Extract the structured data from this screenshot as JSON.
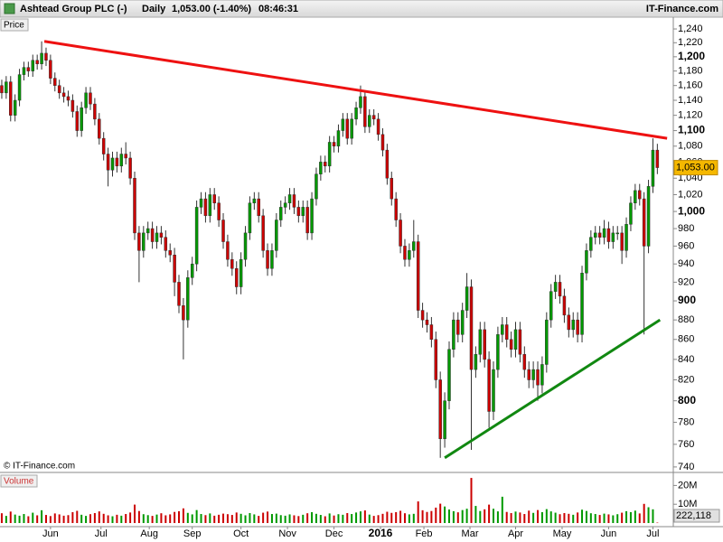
{
  "chart_data": {
    "type": "candlestick",
    "title": "Ashtead Group PLC (-)",
    "interval": "Daily",
    "quote": "1,053.00 (-1.40%)",
    "time": "08:46:31",
    "source": "IT-Finance.com",
    "copyright": "© IT-Finance.com",
    "y_label": "Price",
    "log_scale": true,
    "grid": false,
    "up_color": "#009900",
    "down_color": "#cc0000",
    "ylim": [
      736,
      1256
    ],
    "yticks": [
      740,
      760,
      780,
      800,
      820,
      840,
      860,
      880,
      900,
      920,
      940,
      960,
      980,
      {
        "value": 1000,
        "label": "1,000"
      },
      {
        "value": 1020,
        "label": "1,020"
      },
      {
        "value": 1040,
        "label": "1,040"
      },
      {
        "value": 1060,
        "label": "1,060"
      },
      {
        "value": 1080,
        "label": "1,080"
      },
      {
        "value": 1100,
        "label": "1,100"
      },
      {
        "value": 1120,
        "label": "1,120"
      },
      {
        "value": 1140,
        "label": "1,140"
      },
      {
        "value": 1160,
        "label": "1,160"
      },
      {
        "value": 1180,
        "label": "1,180"
      },
      {
        "value": 1200,
        "label": "1,200"
      },
      {
        "value": 1220,
        "label": "1,220"
      },
      {
        "value": 1240,
        "label": "1,240"
      }
    ],
    "xlim": [
      -0.4,
      151.6
    ],
    "xticks": [
      {
        "value": 11,
        "label": "Jun"
      },
      {
        "value": 22.4,
        "label": "Jul"
      },
      {
        "value": 33.3,
        "label": "Aug"
      },
      {
        "value": 43,
        "label": "Sep"
      },
      {
        "value": 54,
        "label": "Oct"
      },
      {
        "value": 64.5,
        "label": "Nov"
      },
      {
        "value": 75,
        "label": "Dec"
      },
      {
        "value": 85.5,
        "label": "2016"
      },
      {
        "value": 95.3,
        "label": "Feb"
      },
      {
        "value": 105.7,
        "label": "Mar"
      },
      {
        "value": 116,
        "label": "Apr"
      },
      {
        "value": 126.5,
        "label": "May"
      },
      {
        "value": 137,
        "label": "Jun"
      },
      {
        "value": 147,
        "label": "Jul"
      }
    ],
    "open": [
      1160,
      1150,
      1165,
      1120,
      1140,
      1175,
      1185,
      1180,
      1195,
      1190,
      1205,
      1195,
      1170,
      1160,
      1150,
      1145,
      1140,
      1125,
      1100,
      1130,
      1150,
      1135,
      1115,
      1090,
      1070,
      1050,
      1065,
      1055,
      1070,
      1065,
      1040,
      975,
      955,
      975,
      980,
      965,
      975,
      970,
      955,
      950,
      920,
      895,
      880,
      925,
      940,
      1005,
      1015,
      995,
      1020,
      1010,
      990,
      965,
      945,
      935,
      915,
      945,
      975,
      1010,
      1015,
      995,
      955,
      935,
      955,
      990,
      1005,
      1010,
      1020,
      1005,
      995,
      1005,
      975,
      1015,
      1045,
      1060,
      1055,
      1085,
      1080,
      1100,
      1115,
      1090,
      1115,
      1130,
      1145,
      1105,
      1120,
      1115,
      1095,
      1075,
      1040,
      1015,
      990,
      960,
      945,
      955,
      965,
      890,
      880,
      875,
      860,
      820,
      765,
      800,
      850,
      880,
      865,
      890,
      915,
      830,
      845,
      870,
      840,
      790,
      830,
      865,
      875,
      860,
      850,
      870,
      845,
      830,
      820,
      830,
      815,
      835,
      880,
      910,
      920,
      905,
      885,
      870,
      880,
      865,
      930,
      955,
      970,
      975,
      970,
      980,
      965,
      975,
      975,
      955,
      985,
      1010,
      1025,
      1015,
      960,
      1030,
      1075
    ],
    "high": [
      1168,
      1173,
      1173,
      1148,
      1183,
      1193,
      1193,
      1203,
      1203,
      1222,
      1213,
      1203,
      1178,
      1168,
      1158,
      1153,
      1148,
      1133,
      1138,
      1158,
      1158,
      1143,
      1123,
      1098,
      1078,
      1073,
      1073,
      1078,
      1085,
      1073,
      1048,
      983,
      983,
      988,
      988,
      983,
      983,
      978,
      963,
      958,
      928,
      903,
      933,
      948,
      1013,
      1023,
      1023,
      1028,
      1028,
      1018,
      998,
      973,
      953,
      943,
      953,
      983,
      1018,
      1023,
      1023,
      1003,
      963,
      963,
      998,
      1013,
      1018,
      1028,
      1028,
      1013,
      1013,
      1013,
      1023,
      1053,
      1068,
      1068,
      1093,
      1093,
      1108,
      1123,
      1123,
      1123,
      1138,
      1160,
      1153,
      1128,
      1128,
      1123,
      1103,
      1083,
      1048,
      1023,
      998,
      968,
      963,
      990,
      973,
      898,
      888,
      883,
      868,
      828,
      808,
      858,
      888,
      888,
      898,
      930,
      923,
      853,
      878,
      878,
      848,
      838,
      873,
      883,
      883,
      868,
      878,
      878,
      853,
      838,
      838,
      838,
      843,
      888,
      918,
      928,
      928,
      913,
      893,
      888,
      888,
      938,
      963,
      978,
      983,
      983,
      990,
      988,
      983,
      983,
      983,
      993,
      1018,
      1033,
      1033,
      1023,
      1038,
      1090,
      1083
    ],
    "low": [
      1142,
      1142,
      1112,
      1112,
      1132,
      1167,
      1172,
      1172,
      1182,
      1182,
      1187,
      1162,
      1152,
      1142,
      1137,
      1132,
      1117,
      1092,
      1092,
      1122,
      1127,
      1107,
      1082,
      1062,
      1030,
      1042,
      1047,
      1047,
      1057,
      1032,
      967,
      920,
      947,
      967,
      957,
      957,
      962,
      947,
      942,
      905,
      887,
      840,
      872,
      917,
      932,
      997,
      987,
      987,
      1002,
      982,
      957,
      937,
      927,
      907,
      907,
      937,
      967,
      1002,
      987,
      947,
      927,
      927,
      947,
      982,
      997,
      1002,
      997,
      987,
      987,
      967,
      967,
      1007,
      1037,
      1047,
      1047,
      1072,
      1072,
      1092,
      1082,
      1082,
      1107,
      1122,
      1097,
      1097,
      1107,
      1087,
      1067,
      1032,
      1007,
      982,
      952,
      937,
      937,
      947,
      882,
      872,
      867,
      852,
      812,
      748,
      757,
      792,
      842,
      857,
      857,
      882,
      755,
      822,
      837,
      832,
      775,
      782,
      822,
      857,
      852,
      842,
      842,
      837,
      822,
      812,
      812,
      800,
      807,
      827,
      872,
      902,
      897,
      877,
      862,
      862,
      857,
      857,
      922,
      947,
      962,
      962,
      962,
      957,
      957,
      967,
      940,
      947,
      977,
      1002,
      1007,
      865,
      952,
      1022,
      1045
    ],
    "close": [
      1150,
      1165,
      1120,
      1140,
      1175,
      1185,
      1180,
      1195,
      1190,
      1205,
      1195,
      1170,
      1160,
      1150,
      1145,
      1140,
      1125,
      1100,
      1130,
      1150,
      1135,
      1115,
      1090,
      1070,
      1050,
      1065,
      1055,
      1070,
      1065,
      1040,
      975,
      955,
      975,
      980,
      965,
      975,
      970,
      955,
      950,
      920,
      895,
      880,
      925,
      940,
      1005,
      1015,
      995,
      1020,
      1010,
      990,
      965,
      945,
      935,
      915,
      945,
      975,
      1010,
      1015,
      995,
      955,
      935,
      955,
      990,
      1005,
      1010,
      1020,
      1005,
      995,
      1005,
      975,
      1015,
      1045,
      1060,
      1055,
      1085,
      1080,
      1100,
      1115,
      1090,
      1115,
      1130,
      1145,
      1105,
      1120,
      1115,
      1095,
      1075,
      1040,
      1015,
      990,
      960,
      945,
      955,
      965,
      890,
      880,
      875,
      860,
      820,
      765,
      800,
      850,
      880,
      865,
      890,
      915,
      830,
      845,
      870,
      840,
      790,
      830,
      865,
      875,
      860,
      850,
      870,
      845,
      830,
      820,
      830,
      815,
      835,
      880,
      910,
      920,
      905,
      885,
      870,
      880,
      865,
      930,
      955,
      970,
      975,
      970,
      980,
      965,
      975,
      975,
      955,
      985,
      1010,
      1025,
      1015,
      960,
      1030,
      1075,
      1053
    ],
    "last_price": {
      "value": 1053,
      "label": "1,053.00"
    },
    "trendlines": [
      {
        "color": "#ee1111",
        "x": [
          9.6,
          150.2
        ],
        "y": [
          1222,
          1090
        ]
      },
      {
        "color": "#118811",
        "x": [
          100,
          148.6
        ],
        "y": [
          748,
          880
        ]
      }
    ],
    "volume": {
      "label": "Volume",
      "ylim": [
        0,
        25000000
      ],
      "yticks": [
        {
          "value": 10000000,
          "label": "10M"
        },
        {
          "value": 20000000,
          "label": "20M"
        }
      ],
      "values": [
        5200000,
        3800000,
        6100000,
        4500000,
        3900000,
        4800000,
        3600000,
        5500000,
        4100000,
        6800000,
        4300000,
        3700000,
        5100000,
        4600000,
        3900000,
        4200000,
        5800000,
        6500000,
        4400000,
        3800000,
        4700000,
        5300000,
        6200000,
        4900000,
        4100000,
        3600000,
        4400000,
        3900000,
        4800000,
        5600000,
        9800000,
        6400000,
        4700000,
        4200000,
        3800000,
        4500000,
        5200000,
        4100000,
        4600000,
        5900000,
        6300000,
        7800000,
        5400000,
        4600000,
        6900000,
        4800000,
        4200000,
        5100000,
        3900000,
        4400000,
        5000000,
        4700000,
        4300000,
        5600000,
        4900000,
        4100000,
        5300000,
        4600000,
        3800000,
        5500000,
        6100000,
        4800000,
        5000000,
        4200000,
        3900000,
        4600000,
        4100000,
        3700000,
        4400000,
        5200000,
        5800000,
        4900000,
        4300000,
        3600000,
        5100000,
        4000000,
        4700000,
        4400000,
        5300000,
        4800000,
        5600000,
        6200000,
        6700000,
        4500000,
        3800000,
        4200000,
        4900000,
        6000000,
        5400000,
        5800000,
        6500000,
        5200000,
        4600000,
        4900000,
        11500000,
        6800000,
        5900000,
        6400000,
        8200000,
        10300000,
        8800000,
        7200000,
        6300000,
        5700000,
        6900000,
        7600000,
        24000000,
        9100000,
        6400000,
        7300000,
        9800000,
        7600000,
        6200000,
        14000000,
        5900000,
        5300000,
        6100000,
        5600000,
        4800000,
        6600000,
        5400000,
        6900000,
        5800000,
        7400000,
        6200000,
        5500000,
        4700000,
        5300000,
        4900000,
        4400000,
        5600000,
        7100000,
        6400000,
        5200000,
        4800000,
        4300000,
        5000000,
        4600000,
        4100000,
        4700000,
        5500000,
        6300000,
        5800000,
        6600000,
        5100000,
        10200000,
        8400000,
        7300000,
        222118
      ],
      "last": {
        "value": 222118,
        "label": "222,118"
      }
    }
  }
}
